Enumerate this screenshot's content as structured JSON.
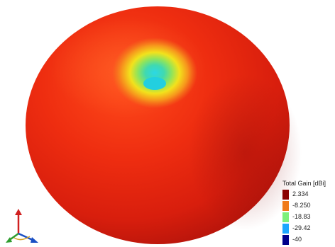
{
  "plot": {
    "quantity": "Total Gain [dBi]",
    "colors": {
      "max": "#8b0000",
      "body": "#e8250f",
      "mid": "#f07a1a",
      "low": "#7cf07a",
      "lower": "#1da6ff",
      "min": "#00008b",
      "hole_yellow": "#f2e21c",
      "hole_center": "#2bd8e6"
    }
  },
  "legend": {
    "title": "Total Gain [dBi]",
    "entries": [
      {
        "label": "2.334",
        "color": "#8b0000"
      },
      {
        "label": "-8.250",
        "color": "#f07a1a"
      },
      {
        "label": "-18.83",
        "color": "#7cf07a"
      },
      {
        "label": "-29.42",
        "color": "#1da6ff"
      },
      {
        "label": "-40",
        "color": "#00008b"
      }
    ]
  },
  "axes": {
    "x_color": "#1a4fc4",
    "y_color": "#2f9d2f",
    "z_color": "#d02020"
  }
}
